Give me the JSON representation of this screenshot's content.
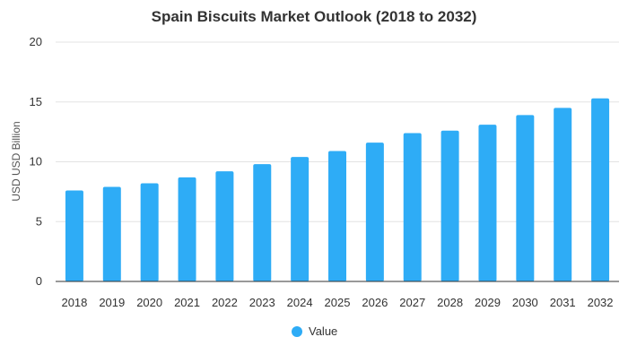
{
  "chart_data": {
    "type": "bar",
    "title": "Spain Biscuits Market Outlook (2018 to 2032)",
    "xlabel": "",
    "ylabel": "USD USD Billion",
    "categories": [
      "2018",
      "2019",
      "2020",
      "2021",
      "2022",
      "2023",
      "2024",
      "2025",
      "2026",
      "2027",
      "2028",
      "2029",
      "2030",
      "2031",
      "2032"
    ],
    "series": [
      {
        "name": "Value",
        "values": [
          7.6,
          7.9,
          8.2,
          8.7,
          9.2,
          9.8,
          10.4,
          10.9,
          11.6,
          12.4,
          12.6,
          13.1,
          13.9,
          14.5,
          15.3
        ]
      }
    ],
    "ylim": [
      0,
      20
    ],
    "yticks": [
      0,
      5,
      10,
      15,
      20
    ],
    "grid": true,
    "legend_position": "bottom-center",
    "colors": {
      "bar": "#2eacf6",
      "grid": "#e3e3e3",
      "axis": "#333333",
      "text": "#333333",
      "title": "#333333"
    }
  }
}
